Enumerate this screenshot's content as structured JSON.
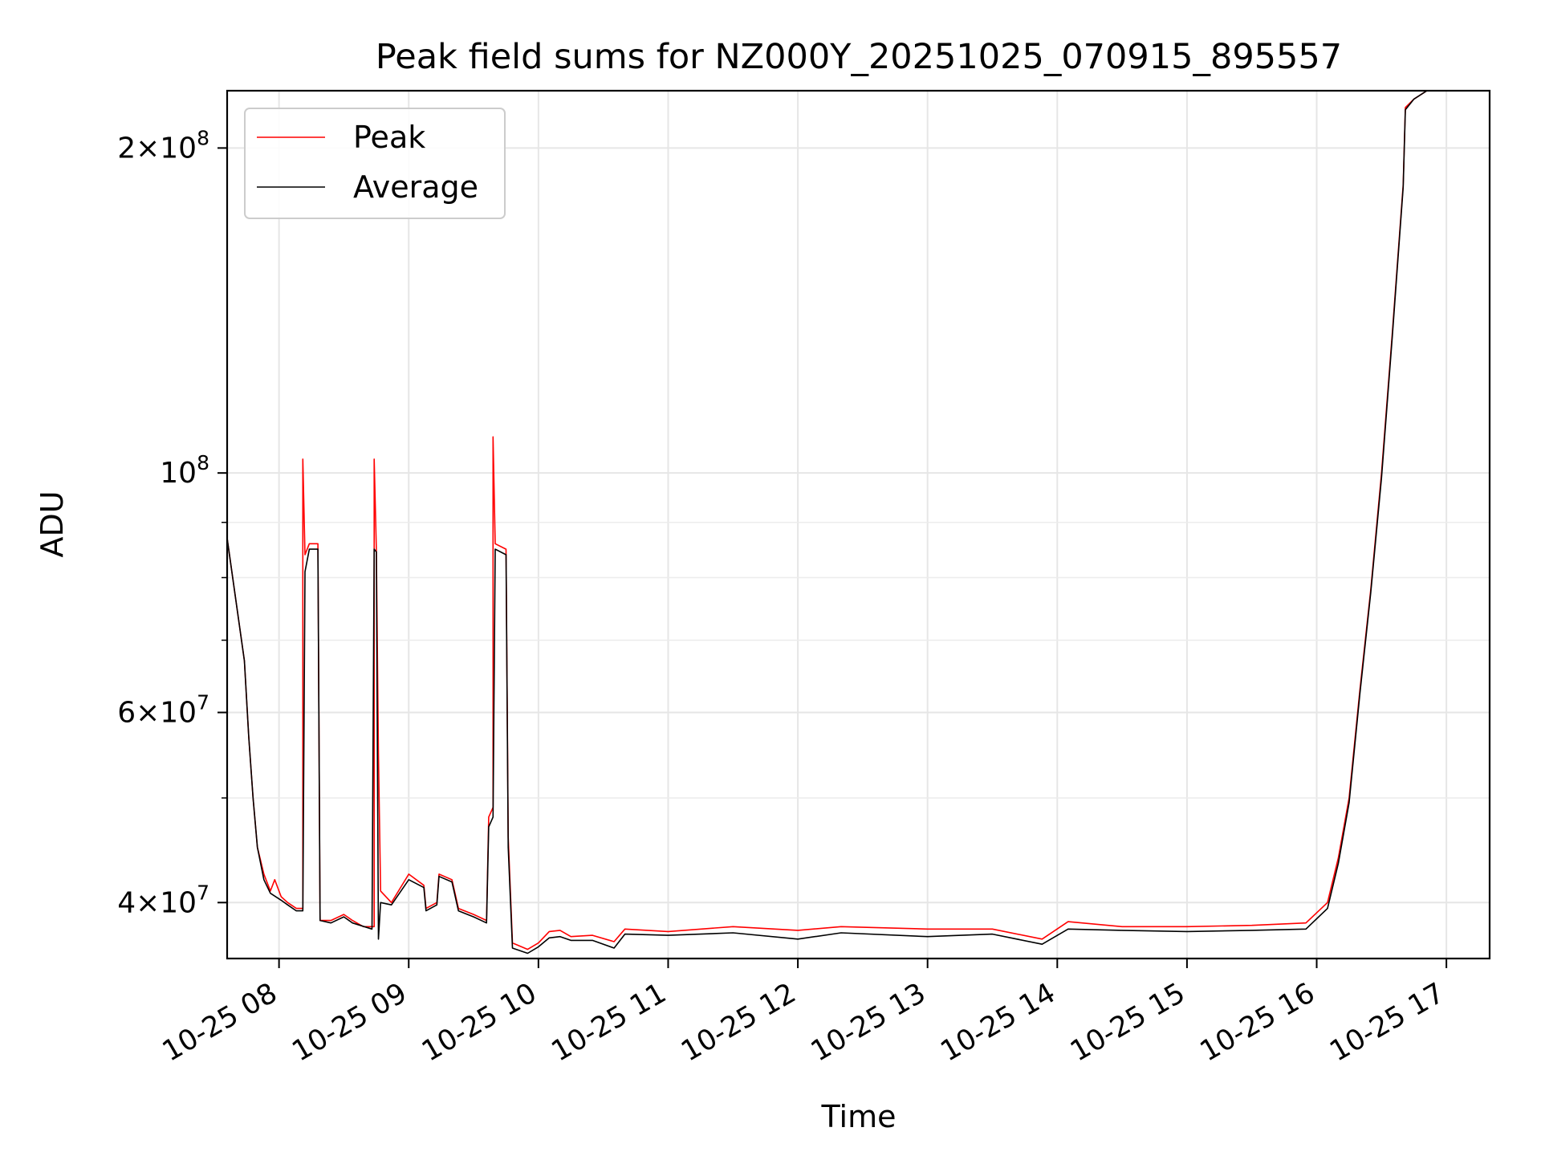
{
  "chart_data": {
    "type": "line",
    "title": "Peak field sums for NZ000Y_20251025_070915_895557",
    "xlabel": "Time",
    "ylabel": "ADU",
    "yscale": "log",
    "ylim": [
      35500000,
      226000000
    ],
    "xlim": [
      "2025-10-25 07:36",
      "2025-10-25 17:20"
    ],
    "grid": true,
    "legend_position": "top-left",
    "x_ticks": [
      {
        "t": "2025-10-25 08:00",
        "label": "10-25 08"
      },
      {
        "t": "2025-10-25 09:00",
        "label": "10-25 09"
      },
      {
        "t": "2025-10-25 10:00",
        "label": "10-25 10"
      },
      {
        "t": "2025-10-25 11:00",
        "label": "10-25 11"
      },
      {
        "t": "2025-10-25 12:00",
        "label": "10-25 12"
      },
      {
        "t": "2025-10-25 13:00",
        "label": "10-25 13"
      },
      {
        "t": "2025-10-25 14:00",
        "label": "10-25 14"
      },
      {
        "t": "2025-10-25 15:00",
        "label": "10-25 15"
      },
      {
        "t": "2025-10-25 16:00",
        "label": "10-25 16"
      },
      {
        "t": "2025-10-25 17:00",
        "label": "10-25 17"
      }
    ],
    "y_ticks": [
      {
        "value": 40000000,
        "mant": "4",
        "exp": "7"
      },
      {
        "value": 60000000,
        "mant": "6",
        "exp": "7"
      },
      {
        "value": 100000000,
        "mant": "",
        "exp": "8"
      },
      {
        "value": 200000000,
        "mant": "2",
        "exp": "8"
      }
    ],
    "y_minor": [
      50000000,
      70000000,
      80000000,
      90000000
    ],
    "series": [
      {
        "name": "Peak",
        "color": "#ff0000",
        "points": [
          [
            "2025-10-25 07:36",
            87000000
          ],
          [
            "2025-10-25 07:44",
            67000000
          ],
          [
            "2025-10-25 07:46",
            57000000
          ],
          [
            "2025-10-25 07:48",
            50000000
          ],
          [
            "2025-10-25 07:50",
            45000000
          ],
          [
            "2025-10-25 07:53",
            42500000
          ],
          [
            "2025-10-25 07:56",
            41000000
          ],
          [
            "2025-10-25 07:58",
            42000000
          ],
          [
            "2025-10-25 08:01",
            40500000
          ],
          [
            "2025-10-25 08:04",
            40000000
          ],
          [
            "2025-10-25 08:08",
            39500000
          ],
          [
            "2025-10-25 08:11",
            39500000
          ],
          [
            "2025-10-25 08:11",
            103000000
          ],
          [
            "2025-10-25 08:12",
            84000000
          ],
          [
            "2025-10-25 08:14",
            86000000
          ],
          [
            "2025-10-25 08:18",
            86000000
          ],
          [
            "2025-10-25 08:19",
            38500000
          ],
          [
            "2025-10-25 08:24",
            38500000
          ],
          [
            "2025-10-25 08:30",
            39000000
          ],
          [
            "2025-10-25 08:34",
            38500000
          ],
          [
            "2025-10-25 08:39",
            38000000
          ],
          [
            "2025-10-25 08:44",
            38000000
          ],
          [
            "2025-10-25 08:44",
            103000000
          ],
          [
            "2025-10-25 08:45",
            85000000
          ],
          [
            "2025-10-25 08:46",
            55000000
          ],
          [
            "2025-10-25 08:47",
            41000000
          ],
          [
            "2025-10-25 08:52",
            40000000
          ],
          [
            "2025-10-25 09:00",
            42500000
          ],
          [
            "2025-10-25 09:07",
            41500000
          ],
          [
            "2025-10-25 09:08",
            39500000
          ],
          [
            "2025-10-25 09:13",
            40000000
          ],
          [
            "2025-10-25 09:14",
            42500000
          ],
          [
            "2025-10-25 09:20",
            42000000
          ],
          [
            "2025-10-25 09:23",
            39500000
          ],
          [
            "2025-10-25 09:30",
            39000000
          ],
          [
            "2025-10-25 09:36",
            38500000
          ],
          [
            "2025-10-25 09:37",
            48000000
          ],
          [
            "2025-10-25 09:39",
            49000000
          ],
          [
            "2025-10-25 09:39",
            108000000
          ],
          [
            "2025-10-25 09:40",
            86000000
          ],
          [
            "2025-10-25 09:45",
            85000000
          ],
          [
            "2025-10-25 09:46",
            46000000
          ],
          [
            "2025-10-25 09:48",
            36700000
          ],
          [
            "2025-10-25 09:55",
            36200000
          ],
          [
            "2025-10-25 10:00",
            36700000
          ],
          [
            "2025-10-25 10:05",
            37600000
          ],
          [
            "2025-10-25 10:10",
            37700000
          ],
          [
            "2025-10-25 10:15",
            37200000
          ],
          [
            "2025-10-25 10:25",
            37300000
          ],
          [
            "2025-10-25 10:35",
            36800000
          ],
          [
            "2025-10-25 10:40",
            37800000
          ],
          [
            "2025-10-25 11:00",
            37600000
          ],
          [
            "2025-10-25 11:30",
            38000000
          ],
          [
            "2025-10-25 12:00",
            37700000
          ],
          [
            "2025-10-25 12:20",
            38000000
          ],
          [
            "2025-10-25 13:00",
            37800000
          ],
          [
            "2025-10-25 13:30",
            37800000
          ],
          [
            "2025-10-25 13:53",
            37000000
          ],
          [
            "2025-10-25 14:05",
            38400000
          ],
          [
            "2025-10-25 14:30",
            38000000
          ],
          [
            "2025-10-25 15:00",
            38000000
          ],
          [
            "2025-10-25 15:30",
            38100000
          ],
          [
            "2025-10-25 15:55",
            38300000
          ],
          [
            "2025-10-25 16:05",
            40000000
          ],
          [
            "2025-10-25 16:10",
            44000000
          ],
          [
            "2025-10-25 16:15",
            50000000
          ],
          [
            "2025-10-25 16:20",
            63000000
          ],
          [
            "2025-10-25 16:25",
            78000000
          ],
          [
            "2025-10-25 16:30",
            100000000
          ],
          [
            "2025-10-25 16:35",
            135000000
          ],
          [
            "2025-10-25 16:40",
            185000000
          ],
          [
            "2025-10-25 16:41",
            218000000
          ],
          [
            "2025-10-25 16:45",
            222000000
          ],
          [
            "2025-10-25 16:51",
            226000000
          ]
        ]
      },
      {
        "name": "Average",
        "color": "#000000",
        "points": [
          [
            "2025-10-25 07:36",
            87000000
          ],
          [
            "2025-10-25 07:44",
            67000000
          ],
          [
            "2025-10-25 07:46",
            57000000
          ],
          [
            "2025-10-25 07:48",
            50000000
          ],
          [
            "2025-10-25 07:50",
            45000000
          ],
          [
            "2025-10-25 07:53",
            42000000
          ],
          [
            "2025-10-25 07:56",
            40800000
          ],
          [
            "2025-10-25 08:01",
            40200000
          ],
          [
            "2025-10-25 08:04",
            39800000
          ],
          [
            "2025-10-25 08:08",
            39300000
          ],
          [
            "2025-10-25 08:11",
            39300000
          ],
          [
            "2025-10-25 08:12",
            81000000
          ],
          [
            "2025-10-25 08:14",
            85000000
          ],
          [
            "2025-10-25 08:18",
            85000000
          ],
          [
            "2025-10-25 08:19",
            38500000
          ],
          [
            "2025-10-25 08:24",
            38300000
          ],
          [
            "2025-10-25 08:30",
            38800000
          ],
          [
            "2025-10-25 08:34",
            38300000
          ],
          [
            "2025-10-25 08:43",
            37800000
          ],
          [
            "2025-10-25 08:44",
            85000000
          ],
          [
            "2025-10-25 08:45",
            84500000
          ],
          [
            "2025-10-25 08:46",
            37000000
          ],
          [
            "2025-10-25 08:47",
            40000000
          ],
          [
            "2025-10-25 08:52",
            39800000
          ],
          [
            "2025-10-25 09:00",
            42000000
          ],
          [
            "2025-10-25 09:07",
            41300000
          ],
          [
            "2025-10-25 09:08",
            39300000
          ],
          [
            "2025-10-25 09:13",
            39800000
          ],
          [
            "2025-10-25 09:14",
            42300000
          ],
          [
            "2025-10-25 09:20",
            41800000
          ],
          [
            "2025-10-25 09:23",
            39300000
          ],
          [
            "2025-10-25 09:30",
            38800000
          ],
          [
            "2025-10-25 09:36",
            38300000
          ],
          [
            "2025-10-25 09:37",
            47000000
          ],
          [
            "2025-10-25 09:39",
            48000000
          ],
          [
            "2025-10-25 09:40",
            85000000
          ],
          [
            "2025-10-25 09:45",
            84000000
          ],
          [
            "2025-10-25 09:46",
            45000000
          ],
          [
            "2025-10-25 09:48",
            36300000
          ],
          [
            "2025-10-25 09:55",
            35900000
          ],
          [
            "2025-10-25 10:00",
            36400000
          ],
          [
            "2025-10-25 10:05",
            37100000
          ],
          [
            "2025-10-25 10:10",
            37200000
          ],
          [
            "2025-10-25 10:15",
            36900000
          ],
          [
            "2025-10-25 10:25",
            36900000
          ],
          [
            "2025-10-25 10:35",
            36300000
          ],
          [
            "2025-10-25 10:40",
            37400000
          ],
          [
            "2025-10-25 11:00",
            37300000
          ],
          [
            "2025-10-25 11:30",
            37500000
          ],
          [
            "2025-10-25 12:00",
            37000000
          ],
          [
            "2025-10-25 12:20",
            37500000
          ],
          [
            "2025-10-25 13:00",
            37200000
          ],
          [
            "2025-10-25 13:30",
            37400000
          ],
          [
            "2025-10-25 13:53",
            36600000
          ],
          [
            "2025-10-25 14:05",
            37800000
          ],
          [
            "2025-10-25 14:30",
            37700000
          ],
          [
            "2025-10-25 15:00",
            37600000
          ],
          [
            "2025-10-25 15:30",
            37700000
          ],
          [
            "2025-10-25 15:55",
            37800000
          ],
          [
            "2025-10-25 16:05",
            39500000
          ],
          [
            "2025-10-25 16:10",
            43500000
          ],
          [
            "2025-10-25 16:15",
            49500000
          ],
          [
            "2025-10-25 16:20",
            62500000
          ],
          [
            "2025-10-25 16:25",
            77500000
          ],
          [
            "2025-10-25 16:30",
            99000000
          ],
          [
            "2025-10-25 16:35",
            134000000
          ],
          [
            "2025-10-25 16:40",
            184000000
          ],
          [
            "2025-10-25 16:41",
            217000000
          ],
          [
            "2025-10-25 16:45",
            222000000
          ],
          [
            "2025-10-25 16:51",
            226000000
          ]
        ]
      }
    ]
  }
}
